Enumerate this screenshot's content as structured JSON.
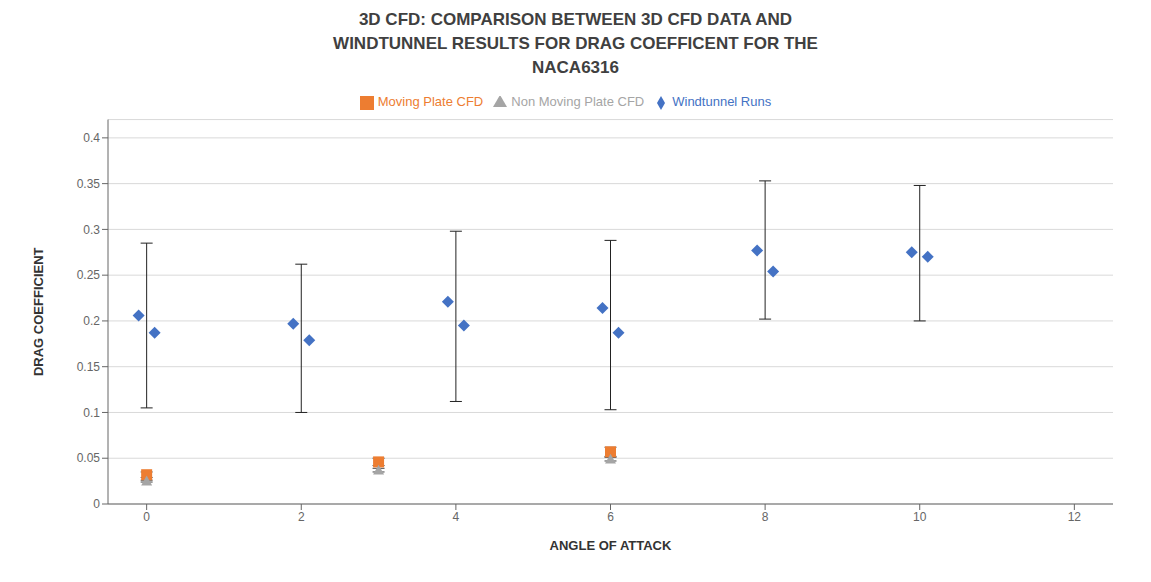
{
  "chart_data": {
    "type": "scatter",
    "title": "3D CFD: COMPARISON BETWEEN 3D CFD DATA AND\nWINDTUNNEL RESULTS FOR DRAG COEFFICENT FOR THE\nNACA6316",
    "x_label": "ANGLE OF ATTACK",
    "y_label": "DRAG COEFFICIENT",
    "xlim": [
      -0.5,
      12.5
    ],
    "ylim": [
      0,
      0.42
    ],
    "xticks": [
      0,
      2,
      4,
      6,
      8,
      10,
      12
    ],
    "yticks": [
      0,
      0.05,
      0.1,
      0.15,
      0.2,
      0.25,
      0.3,
      0.35,
      0.4
    ],
    "grid": true,
    "legend": "top",
    "series": [
      {
        "name": "Windtunnel Runs",
        "color": "#4472C4",
        "marker": "diamond",
        "x": [
          0,
          2,
          4,
          6,
          8,
          10
        ],
        "values": [
          0.206,
          0.197,
          0.221,
          0.214,
          0.277,
          0.275
        ],
        "values_2": [
          0.187,
          0.179,
          0.195,
          0.187,
          0.254,
          0.27
        ],
        "error_low": [
          0.105,
          0.1,
          0.112,
          0.103,
          0.202,
          0.2
        ],
        "error_high": [
          0.285,
          0.262,
          0.298,
          0.288,
          0.353,
          0.348
        ]
      },
      {
        "name": "Moving Plate CFD",
        "color": "#ED7D31",
        "marker": "square",
        "x": [
          0,
          3,
          6
        ],
        "values": [
          0.032,
          0.046,
          0.057
        ],
        "error": [
          0.003,
          0.004,
          0.005
        ]
      },
      {
        "name": "Non Moving Plate CFD",
        "color": "#A5A5A5",
        "marker": "triangle",
        "x": [
          0,
          3,
          6
        ],
        "values": [
          0.025,
          0.037,
          0.049
        ],
        "error": [
          0.001,
          0.002,
          0.002
        ]
      }
    ]
  }
}
